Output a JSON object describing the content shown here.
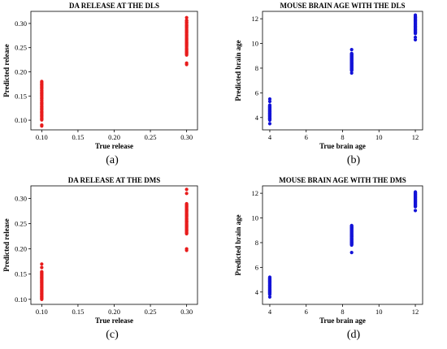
{
  "chart_data": [
    {
      "type": "scatter",
      "title": "DA RELEASE AT THE DLS",
      "xlabel": "True release",
      "ylabel": "Predicted release",
      "caption": "(a)",
      "color": "#e81c1c",
      "xlim": [
        0.085,
        0.315
      ],
      "ylim": [
        0.08,
        0.325
      ],
      "xticks": [
        "0.10",
        "0.15",
        "0.20",
        "0.25",
        "0.30"
      ],
      "xtick_values": [
        0.1,
        0.15,
        0.2,
        0.25,
        0.3
      ],
      "yticks": [
        "0.10",
        "0.15",
        "0.20",
        "0.25",
        "0.30"
      ],
      "ytick_values": [
        0.1,
        0.15,
        0.2,
        0.25,
        0.3
      ],
      "series": [
        {
          "x": 0.1,
          "y_min": 0.1,
          "y_max": 0.178,
          "outliers": [
            0.09,
            0.088,
            0.18
          ]
        },
        {
          "x": 0.3,
          "y_min": 0.235,
          "y_max": 0.307,
          "outliers": [
            0.215,
            0.218,
            0.312
          ]
        }
      ]
    },
    {
      "type": "scatter",
      "title": "MOUSE BRAIN AGE WITH THE DLS",
      "xlabel": "True brain age",
      "ylabel": "Predicted brain age",
      "caption": "(b)",
      "color": "#1414d8",
      "xlim": [
        3.6,
        12.4
      ],
      "ylim": [
        3.0,
        12.6
      ],
      "xticks": [
        "4",
        "6",
        "8",
        "10",
        "12"
      ],
      "xtick_values": [
        4,
        6,
        8,
        10,
        12
      ],
      "yticks": [
        "4",
        "6",
        "8",
        "10",
        "12"
      ],
      "ytick_values": [
        4,
        6,
        8,
        10,
        12
      ],
      "series": [
        {
          "x": 4,
          "y_min": 3.8,
          "y_max": 5.0,
          "outliers": [
            3.5,
            5.3,
            5.5
          ]
        },
        {
          "x": 8.5,
          "y_min": 7.8,
          "y_max": 9.2,
          "outliers": [
            7.6,
            9.5
          ]
        },
        {
          "x": 12,
          "y_min": 10.8,
          "y_max": 12.2,
          "outliers": [
            10.3,
            10.5,
            12.3
          ]
        }
      ]
    },
    {
      "type": "scatter",
      "title": "DA RELEASE AT THE DMS",
      "xlabel": "True release",
      "ylabel": "Predicted release",
      "caption": "(c)",
      "color": "#e81c1c",
      "xlim": [
        0.085,
        0.315
      ],
      "ylim": [
        0.09,
        0.325
      ],
      "xticks": [
        "0.10",
        "0.15",
        "0.20",
        "0.25",
        "0.30"
      ],
      "xtick_values": [
        0.1,
        0.15,
        0.2,
        0.25,
        0.3
      ],
      "yticks": [
        "0.10",
        "0.15",
        "0.20",
        "0.25",
        "0.30"
      ],
      "yticks_values_note": "",
      "ytick_values": [
        0.1,
        0.15,
        0.2,
        0.25,
        0.3
      ],
      "series": [
        {
          "x": 0.1,
          "y_min": 0.1,
          "y_max": 0.155,
          "outliers": [
            0.163,
            0.17
          ]
        },
        {
          "x": 0.3,
          "y_min": 0.23,
          "y_max": 0.29,
          "outliers": [
            0.197,
            0.2,
            0.31,
            0.318
          ]
        }
      ]
    },
    {
      "type": "scatter",
      "title": "MOUSE BRAIN AGE WITH THE DMS",
      "xlabel": "True brain age",
      "ylabel": "Predicted brain age",
      "caption": "(d)",
      "color": "#1414d8",
      "xlim": [
        3.6,
        12.4
      ],
      "ylim": [
        3.0,
        12.6
      ],
      "xticks": [
        "4",
        "6",
        "8",
        "10",
        "12"
      ],
      "xtick_values": [
        4,
        6,
        8,
        10,
        12
      ],
      "yticks": [
        "4",
        "6",
        "8",
        "10",
        "12"
      ],
      "ytick_values": [
        4,
        6,
        8,
        10,
        12
      ],
      "series": [
        {
          "x": 4,
          "y_min": 3.8,
          "y_max": 5.2,
          "outliers": [
            3.6
          ]
        },
        {
          "x": 8.5,
          "y_min": 7.8,
          "y_max": 9.4,
          "outliers": [
            7.2
          ]
        },
        {
          "x": 12,
          "y_min": 10.9,
          "y_max": 12.1,
          "outliers": [
            10.6
          ]
        }
      ]
    }
  ]
}
